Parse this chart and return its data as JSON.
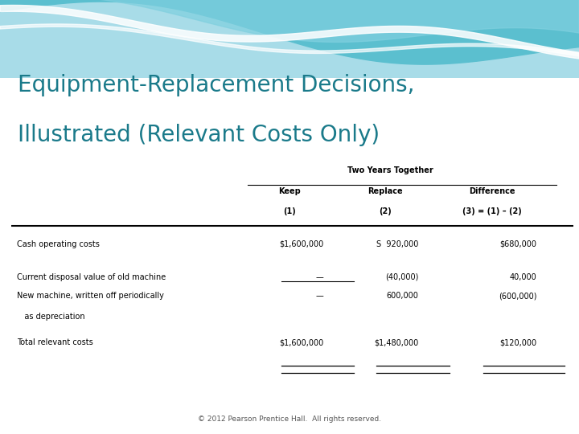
{
  "title_line1": "Equipment-Replacement Decisions,",
  "title_line2": "Illustrated (Relevant Costs Only)",
  "title_color": "#1a7a8a",
  "background_color": "#ffffff",
  "header_group": "Two Years Together",
  "col_headers_line1": [
    "Keep",
    "Replace",
    "Difference"
  ],
  "col_headers_line2": [
    "(1)",
    "(2)",
    "(3) = (1) – (2)"
  ],
  "row_labels_line1": [
    "Cash operating costs",
    "Current disposal value of old machine",
    "New machine, written off periodically",
    "Total relevant costs"
  ],
  "row_labels_line2": [
    "",
    "",
    "   as depreciation",
    ""
  ],
  "col1_values": [
    "$1,600,000",
    "—",
    "—",
    "$1,600,000"
  ],
  "col2_values": [
    "S  920,000",
    "(40,000)",
    "600,000",
    "$1,480,000"
  ],
  "col3_values": [
    "$680,000",
    "40,000",
    "(600,000)",
    "$120,000"
  ],
  "footer": "© 2012 Pearson Prentice Hall.  All rights reserved.",
  "wave_bg": "#a8dce8",
  "wave1_color": "#5bbfcf",
  "wave2_color": "#80d0df",
  "wave3_color": "#c8eaf0",
  "wave_white": "#ffffff"
}
